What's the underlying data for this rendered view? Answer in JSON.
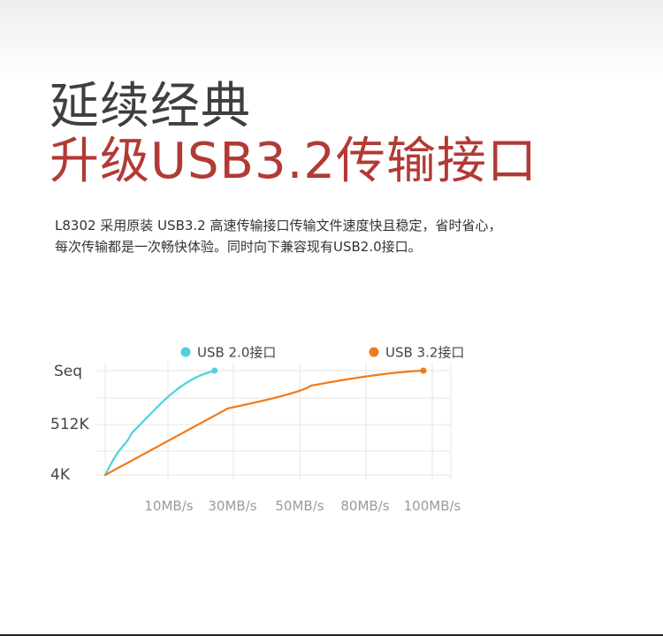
{
  "heading": {
    "line1": "延续经典",
    "line2": "升级USB3.2传输接口"
  },
  "description": {
    "line1": "L8302 采用原装 USB3.2 高速传输接口传输文件速度快且稳定，省时省心，",
    "line2": "每次传输都是一次畅快体验。同时向下兼容现有USB2.0接口。"
  },
  "colors": {
    "heading_dark": "#3f3f3f",
    "heading_accent": "#b23a35",
    "series_usb2": "#4fd3d6",
    "series_usb32": "#f07a1a",
    "grid": "#e6e6e6",
    "tick_text": "#9a9a9a",
    "y_text": "#444444"
  },
  "chart_data": {
    "type": "line",
    "x_categories": [
      "10MB/s",
      "30MB/s",
      "50MB/s",
      "80MB/s",
      "100MB/s"
    ],
    "y_categories": [
      "4K",
      "512K",
      "Seq"
    ],
    "legend_position": "top",
    "grid": true,
    "series": [
      {
        "name": "USB 2.0接口",
        "color": "#4fd3d6",
        "points": [
          [
            0,
            0
          ],
          [
            0.4,
            0.83
          ],
          [
            1.65,
            2
          ]
        ]
      },
      {
        "name": "USB 3.2接口",
        "color": "#f07a1a",
        "points": [
          [
            0,
            0
          ],
          [
            1.85,
            1.3
          ],
          [
            3.1,
            1.72
          ],
          [
            4.8,
            2
          ]
        ]
      }
    ]
  }
}
